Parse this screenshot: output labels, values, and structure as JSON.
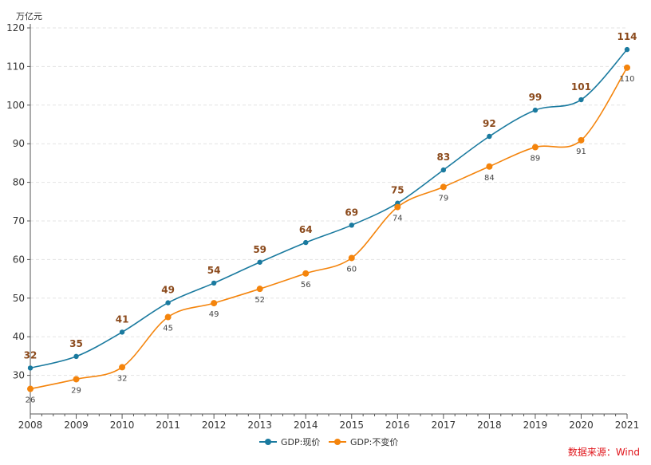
{
  "chart_data": {
    "type": "line",
    "unit": "万亿元",
    "x": [
      "2008",
      "2009",
      "2010",
      "2011",
      "2012",
      "2013",
      "2014",
      "2015",
      "2016",
      "2017",
      "2018",
      "2019",
      "2020",
      "2021"
    ],
    "ylim": [
      20,
      120
    ],
    "yticks": [
      30,
      40,
      50,
      60,
      70,
      80,
      90,
      100,
      110,
      120
    ],
    "grid": true,
    "series": [
      {
        "name": "GDP:现价",
        "color": "#1a7a9f",
        "values": [
          31.9,
          34.9,
          41.2,
          48.8,
          53.9,
          59.3,
          64.4,
          68.9,
          74.6,
          83.2,
          91.9,
          98.7,
          101.4,
          114.4
        ],
        "labels": [
          "32",
          "35",
          "41",
          "49",
          "54",
          "59",
          "64",
          "69",
          "75",
          "83",
          "92",
          "99",
          "101",
          "114"
        ]
      },
      {
        "name": "GDP:不变价",
        "color": "#f4840c",
        "values": [
          26.5,
          29.0,
          32.1,
          45.1,
          48.7,
          52.4,
          56.4,
          60.4,
          73.6,
          78.8,
          84.1,
          89.1,
          90.9,
          109.7
        ],
        "labels": [
          "26",
          "29",
          "32",
          "45",
          "49",
          "52",
          "56",
          "60",
          "74",
          "79",
          "84",
          "89",
          "91",
          "110"
        ]
      }
    ],
    "legend_position": "bottom-center"
  },
  "source": "数据来源：Wind"
}
